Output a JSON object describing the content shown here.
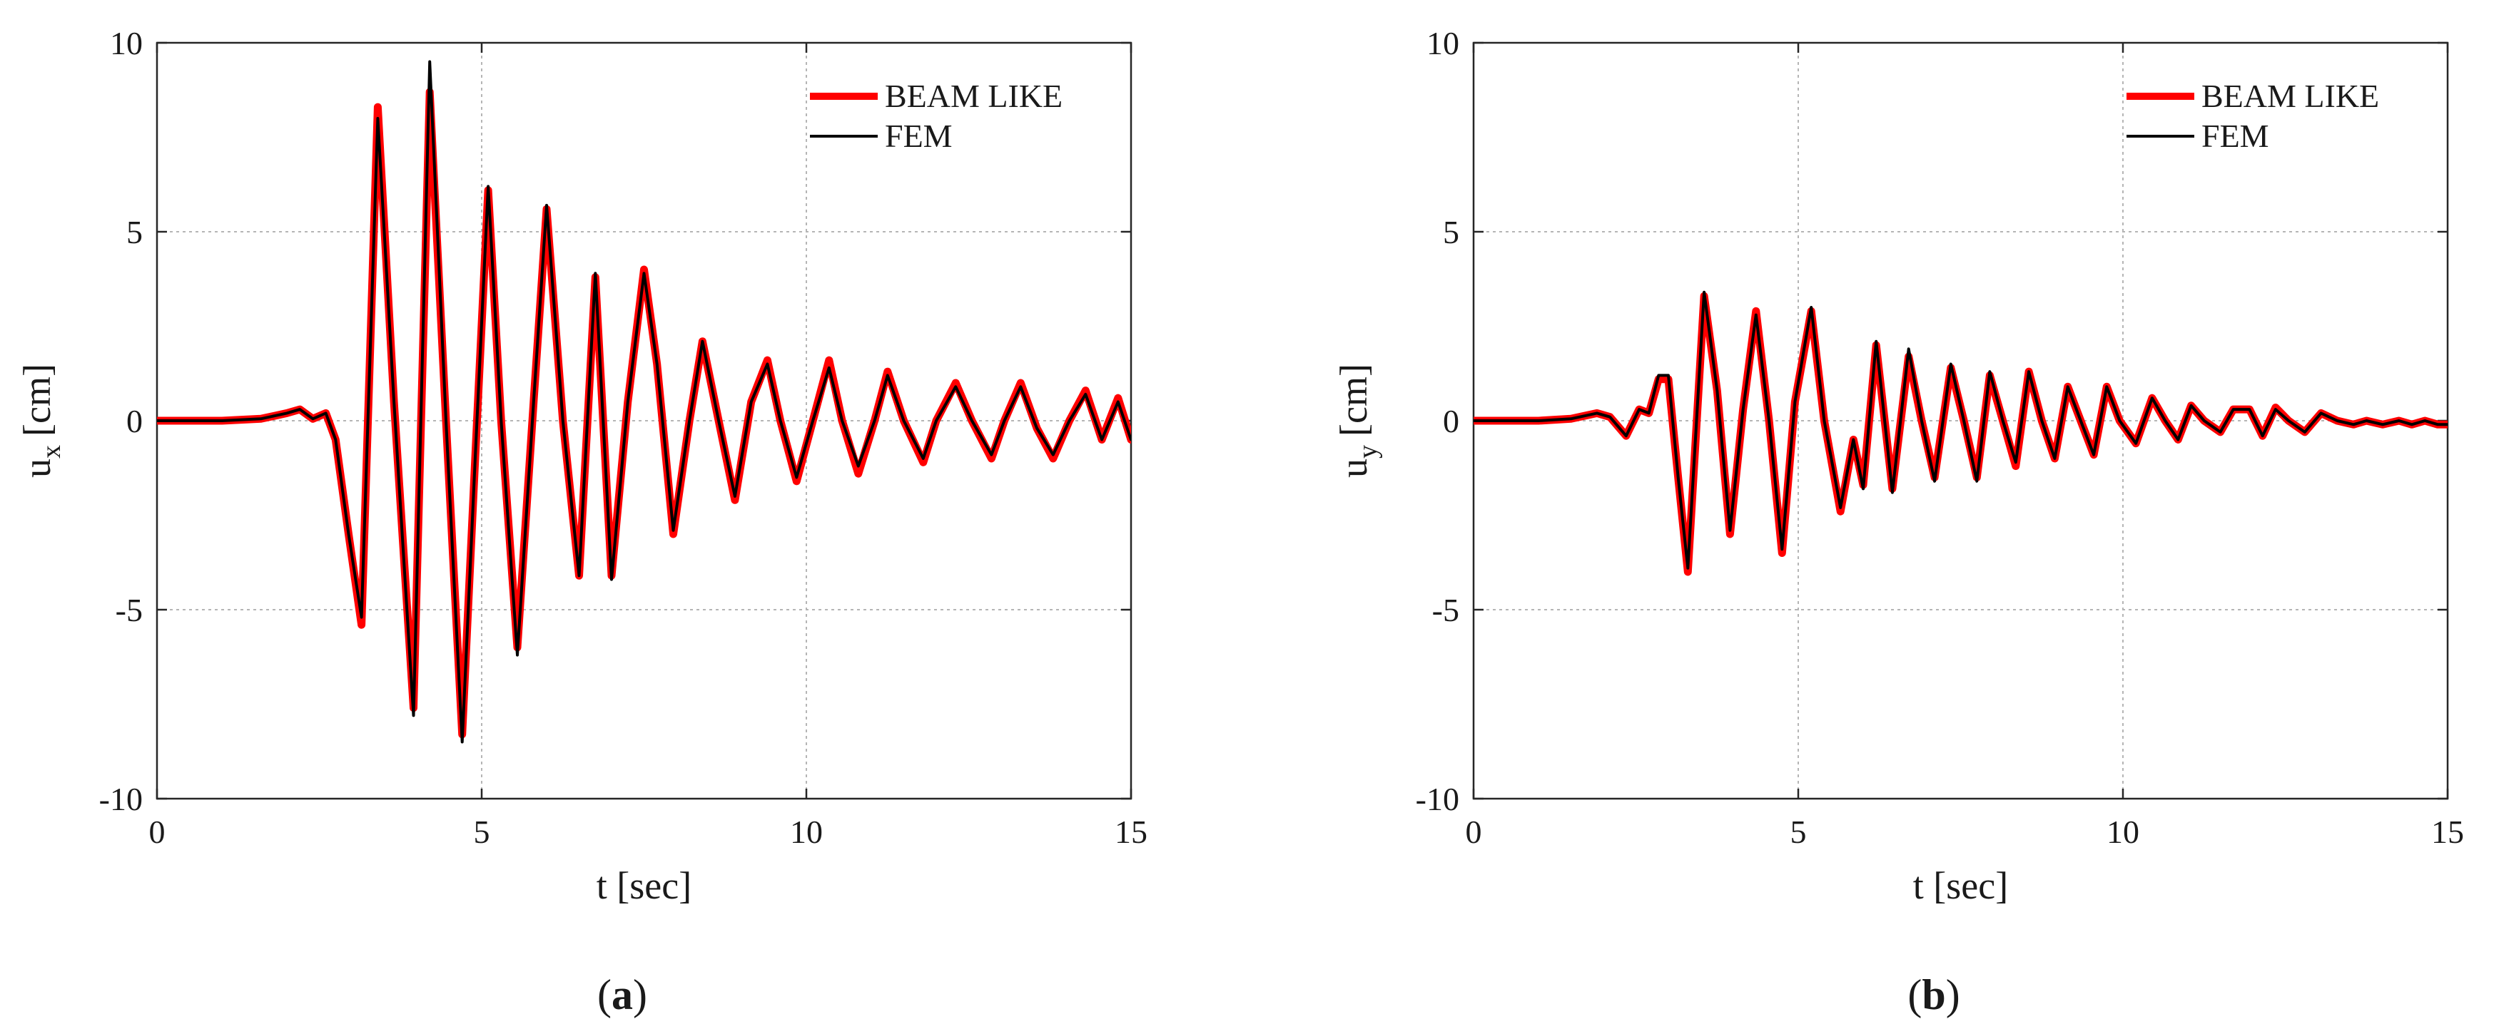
{
  "chart_data": [
    {
      "type": "line",
      "caption_letter": "a",
      "xlabel": "t [sec]",
      "ylabel_main": "u",
      "ylabel_sub": "x",
      "ylabel_unit": "[cm]",
      "xlim": [
        0,
        15
      ],
      "ylim": [
        -10,
        10
      ],
      "xticks": [
        0,
        5,
        10,
        15
      ],
      "yticks": [
        -10,
        -5,
        0,
        5,
        10
      ],
      "grid": true,
      "legend_position": "top-right",
      "series": [
        {
          "name": "BEAM LIKE",
          "color": "#ff0000",
          "x": [
            0,
            1,
            1.6,
            2.0,
            2.2,
            2.4,
            2.6,
            2.75,
            2.95,
            3.15,
            3.4,
            3.65,
            3.95,
            4.2,
            4.45,
            4.7,
            4.9,
            5.1,
            5.3,
            5.55,
            5.8,
            6.0,
            6.25,
            6.5,
            6.75,
            7.0,
            7.25,
            7.5,
            7.7,
            7.95,
            8.2,
            8.4,
            8.65,
            8.9,
            9.15,
            9.4,
            9.6,
            9.85,
            10.1,
            10.35,
            10.55,
            10.8,
            11.05,
            11.25,
            11.5,
            11.8,
            12.0,
            12.3,
            12.55,
            12.85,
            13.05,
            13.3,
            13.55,
            13.8,
            14.05,
            14.3,
            14.55,
            14.8,
            15.0
          ],
          "y": [
            0,
            0,
            0.05,
            0.2,
            0.3,
            0.05,
            0.2,
            -0.5,
            -3.0,
            -5.4,
            8.3,
            0.5,
            -7.6,
            8.7,
            0.0,
            -8.3,
            -1.0,
            6.1,
            0.0,
            -6.0,
            0.5,
            5.6,
            0.0,
            -4.1,
            3.8,
            -4.1,
            0.5,
            4.0,
            1.5,
            -3.0,
            0.0,
            2.1,
            0.0,
            -2.1,
            0.5,
            1.6,
            0.0,
            -1.6,
            0.0,
            1.6,
            0.0,
            -1.4,
            0.0,
            1.3,
            0.0,
            -1.1,
            0.0,
            1.0,
            0.0,
            -1.0,
            0.0,
            1.0,
            -0.2,
            -1.0,
            0.0,
            0.8,
            -0.5,
            0.6,
            -0.5
          ]
        },
        {
          "name": "FEM",
          "color": "#000000",
          "x": [
            0,
            1,
            1.6,
            2.0,
            2.2,
            2.4,
            2.6,
            2.75,
            2.95,
            3.15,
            3.4,
            3.65,
            3.95,
            4.2,
            4.45,
            4.7,
            4.9,
            5.1,
            5.3,
            5.55,
            5.8,
            6.0,
            6.25,
            6.5,
            6.75,
            7.0,
            7.25,
            7.5,
            7.7,
            7.95,
            8.2,
            8.4,
            8.65,
            8.9,
            9.15,
            9.4,
            9.6,
            9.85,
            10.1,
            10.35,
            10.55,
            10.8,
            11.05,
            11.25,
            11.5,
            11.8,
            12.0,
            12.3,
            12.55,
            12.85,
            13.05,
            13.3,
            13.55,
            13.8,
            14.05,
            14.3,
            14.55,
            14.8,
            15.0
          ],
          "y": [
            0,
            0,
            0.05,
            0.2,
            0.3,
            0.05,
            0.2,
            -0.5,
            -3.0,
            -5.2,
            8.0,
            0.5,
            -7.8,
            9.5,
            0.0,
            -8.5,
            -1.0,
            6.2,
            0.0,
            -6.2,
            0.5,
            5.7,
            0.0,
            -4.1,
            3.9,
            -4.2,
            0.5,
            3.9,
            1.5,
            -2.9,
            0.0,
            2.1,
            0.0,
            -2.0,
            0.5,
            1.5,
            0.0,
            -1.5,
            0.0,
            1.4,
            0.0,
            -1.2,
            0.0,
            1.2,
            0.0,
            -1.0,
            0.0,
            0.9,
            0.0,
            -0.9,
            0.0,
            0.9,
            -0.2,
            -0.9,
            0.0,
            0.7,
            -0.5,
            0.5,
            -0.5
          ]
        }
      ]
    },
    {
      "type": "line",
      "caption_letter": "b",
      "xlabel": "t [sec]",
      "ylabel_main": "u",
      "ylabel_sub": "y",
      "ylabel_unit": "[cm]",
      "xlim": [
        0,
        15
      ],
      "ylim": [
        -10,
        10
      ],
      "xticks": [
        0,
        5,
        10,
        15
      ],
      "yticks": [
        -10,
        -5,
        0,
        5,
        10
      ],
      "grid": true,
      "legend_position": "top-right",
      "series": [
        {
          "name": "BEAM LIKE",
          "color": "#ff0000",
          "x": [
            0,
            1,
            1.5,
            1.9,
            2.1,
            2.35,
            2.55,
            2.7,
            2.85,
            3.0,
            3.15,
            3.3,
            3.55,
            3.75,
            3.95,
            4.15,
            4.35,
            4.55,
            4.75,
            4.95,
            5.2,
            5.4,
            5.65,
            5.85,
            6.0,
            6.2,
            6.45,
            6.7,
            6.9,
            7.1,
            7.35,
            7.55,
            7.75,
            7.95,
            8.15,
            8.35,
            8.55,
            8.75,
            8.95,
            9.15,
            9.35,
            9.55,
            9.75,
            9.95,
            10.2,
            10.45,
            10.65,
            10.85,
            11.05,
            11.25,
            11.5,
            11.7,
            11.95,
            12.15,
            12.35,
            12.55,
            12.8,
            13.05,
            13.3,
            13.55,
            13.75,
            14.0,
            14.25,
            14.45,
            14.65,
            14.85,
            15.0
          ],
          "y": [
            0,
            0,
            0.05,
            0.2,
            0.1,
            -0.4,
            0.3,
            0.2,
            1.1,
            1.1,
            -1.5,
            -4.0,
            3.3,
            0.8,
            -3.0,
            0.3,
            2.9,
            0.0,
            -3.5,
            0.5,
            2.9,
            0.0,
            -2.4,
            -0.5,
            -1.7,
            2.0,
            -1.8,
            1.7,
            0.0,
            -1.5,
            1.4,
            0.0,
            -1.5,
            1.2,
            0.0,
            -1.2,
            1.3,
            0.0,
            -1.0,
            0.9,
            0.0,
            -0.9,
            0.9,
            0.0,
            -0.6,
            0.6,
            0.0,
            -0.5,
            0.4,
            0.0,
            -0.3,
            0.3,
            0.3,
            -0.4,
            0.35,
            0.0,
            -0.3,
            0.2,
            0.0,
            -0.1,
            0.0,
            -0.1,
            0.0,
            -0.1,
            0.0,
            -0.1,
            -0.1
          ]
        },
        {
          "name": "FEM",
          "color": "#000000",
          "x": [
            0,
            1,
            1.5,
            1.9,
            2.1,
            2.35,
            2.55,
            2.7,
            2.85,
            3.0,
            3.15,
            3.3,
            3.55,
            3.75,
            3.95,
            4.15,
            4.35,
            4.55,
            4.75,
            4.95,
            5.2,
            5.4,
            5.65,
            5.85,
            6.0,
            6.2,
            6.45,
            6.7,
            6.9,
            7.1,
            7.35,
            7.55,
            7.75,
            7.95,
            8.15,
            8.35,
            8.55,
            8.75,
            8.95,
            9.15,
            9.35,
            9.55,
            9.75,
            9.95,
            10.2,
            10.45,
            10.65,
            10.85,
            11.05,
            11.25,
            11.5,
            11.7,
            11.95,
            12.15,
            12.35,
            12.55,
            12.8,
            13.05,
            13.3,
            13.55,
            13.75,
            14.0,
            14.25,
            14.45,
            14.65,
            14.85,
            15.0
          ],
          "y": [
            0,
            0,
            0.05,
            0.2,
            0.1,
            -0.4,
            0.3,
            0.2,
            1.2,
            1.2,
            -1.5,
            -3.9,
            3.4,
            0.8,
            -2.9,
            0.3,
            2.8,
            0.0,
            -3.4,
            0.5,
            3.0,
            0.0,
            -2.3,
            -0.5,
            -1.8,
            2.1,
            -1.9,
            1.9,
            0.0,
            -1.6,
            1.5,
            0.0,
            -1.6,
            1.3,
            0.0,
            -1.1,
            1.3,
            0.0,
            -1.0,
            0.9,
            0.0,
            -0.9,
            0.9,
            0.0,
            -0.6,
            0.6,
            0.0,
            -0.5,
            0.4,
            0.0,
            -0.3,
            0.3,
            0.3,
            -0.4,
            0.3,
            0.0,
            -0.3,
            0.2,
            0.0,
            -0.1,
            0.0,
            -0.1,
            0.0,
            -0.1,
            0.0,
            -0.1,
            -0.1
          ]
        }
      ]
    }
  ]
}
